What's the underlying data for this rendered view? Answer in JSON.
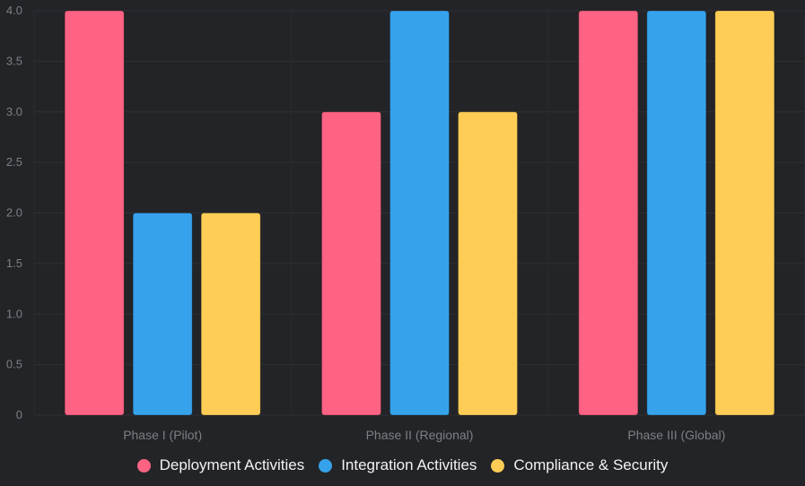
{
  "chart_data": {
    "type": "bar",
    "categories": [
      "Phase I (Pilot)",
      "Phase II (Regional)",
      "Phase III (Global)"
    ],
    "series": [
      {
        "name": "Deployment Activities",
        "values": [
          4,
          3,
          4
        ],
        "color": "#ff6384"
      },
      {
        "name": "Integration Activities",
        "values": [
          2,
          4,
          4
        ],
        "color": "#36a2eb"
      },
      {
        "name": "Compliance & Security",
        "values": [
          2,
          3,
          4
        ],
        "color": "#ffcd56"
      }
    ],
    "ylim": [
      0,
      4
    ],
    "y_ticks": [
      "0",
      "0.5",
      "1.0",
      "1.5",
      "2.0",
      "2.5",
      "3.0",
      "3.5",
      "4.0"
    ],
    "grid": true,
    "legend_position": "bottom",
    "background": "#232427"
  }
}
